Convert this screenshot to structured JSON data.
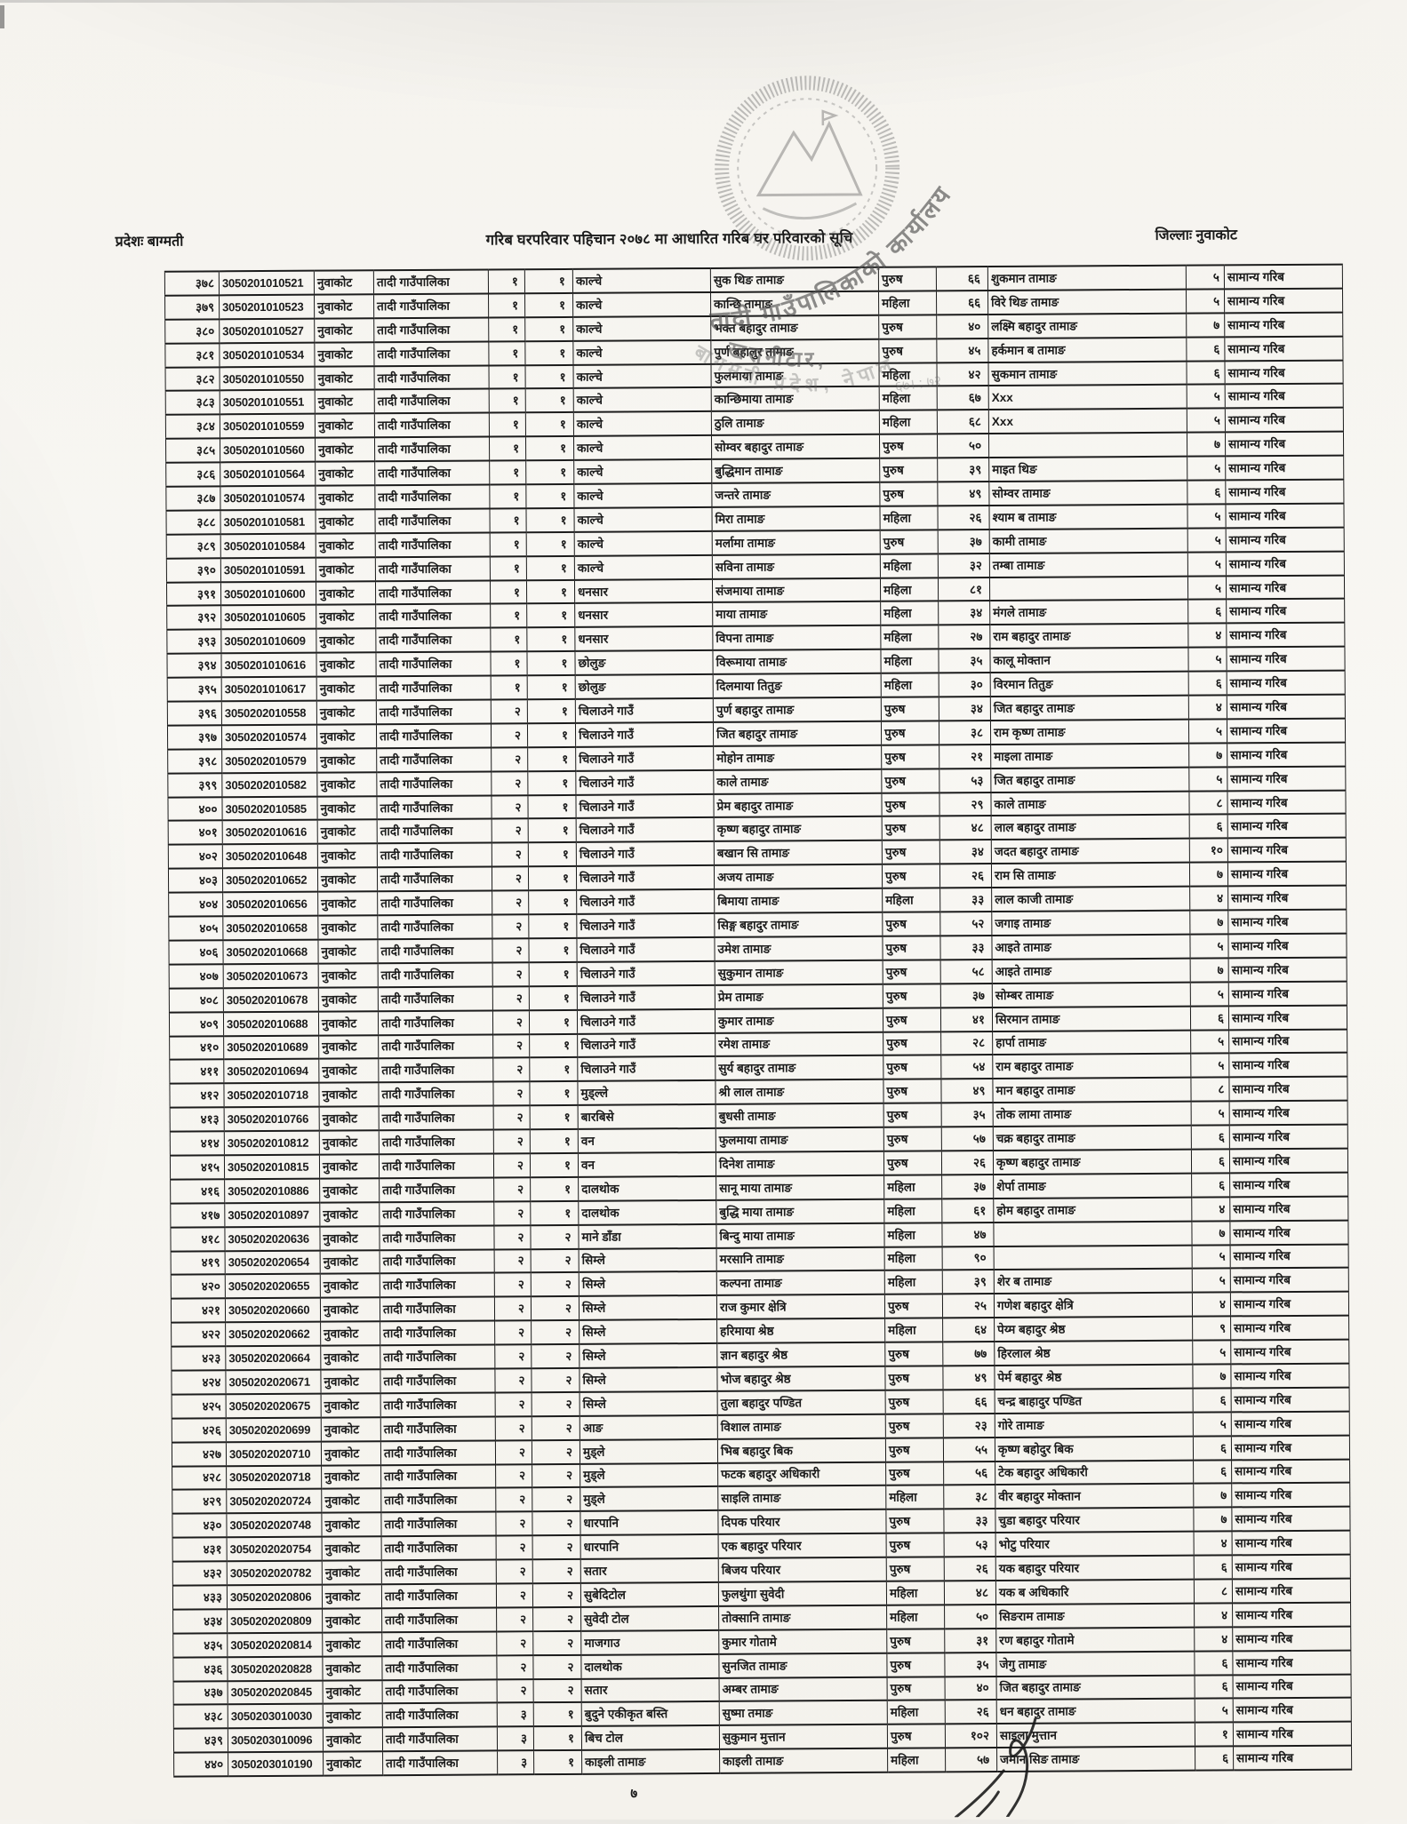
{
  "page": {
    "province_label": "प्रदेशः बाग्मती",
    "title": "गरिब घरपरिवार पहिचान २०७८ मा आधारित गरिब घर परिवारको सूचि",
    "district_label": "जिल्लाः नुवाकोट",
    "page_number": "७"
  },
  "stamp": {
    "arc_top_text": "तादी गाउँपालिकाको कार्यालय",
    "place_text": "खरानीटार,",
    "arc_bottom_text": "बागमती प्रदेश, नेपाल",
    "scribble_text": "६७। : ७२"
  },
  "table": {
    "columns": [
      "sn",
      "id",
      "district",
      "municipality",
      "ward",
      "subward",
      "village",
      "member_name",
      "gender",
      "age",
      "head_name",
      "family_size",
      "category"
    ],
    "rows": [
      [
        "३७८",
        "3050201010521",
        "नुवाकोट",
        "तादी गाउँपालिका",
        "१",
        "१",
        "काल्चे",
        "सुक थिङ तामाङ",
        "पुरुष",
        "६६",
        "शुकमान तामाङ",
        "५",
        "सामान्य गरिब"
      ],
      [
        "३७९",
        "3050201010523",
        "नुवाकोट",
        "तादी गाउँपालिका",
        "१",
        "१",
        "काल्चे",
        "कान्छि तामाङ",
        "महिला",
        "६६",
        "विरे थिङ तामाङ",
        "५",
        "सामान्य गरिब"
      ],
      [
        "३८०",
        "3050201010527",
        "नुवाकोट",
        "तादी गाउँपालिका",
        "१",
        "१",
        "काल्चे",
        "भक्त बहादुर तामाङ",
        "पुरुष",
        "४०",
        "लक्ष्मि बहादुर तामाङ",
        "७",
        "सामान्य गरिब"
      ],
      [
        "३८१",
        "3050201010534",
        "नुवाकोट",
        "तादी गाउँपालिका",
        "१",
        "१",
        "काल्चे",
        "पुर्ण बहालुर तामाङ",
        "पुरुष",
        "४५",
        "हर्कमान ब तामाङ",
        "६",
        "सामान्य गरिब"
      ],
      [
        "३८२",
        "3050201010550",
        "नुवाकोट",
        "तादी गाउँपालिका",
        "१",
        "१",
        "काल्चे",
        "फुलमाया तामाङ",
        "महिला",
        "४२",
        "सुकमान तामाङ",
        "६",
        "सामान्य गरिब"
      ],
      [
        "३८३",
        "3050201010551",
        "नुवाकोट",
        "तादी गाउँपालिका",
        "१",
        "१",
        "काल्चे",
        "कान्छिमाया तामाङ",
        "महिला",
        "६७",
        "Xxx",
        "५",
        "सामान्य गरिब"
      ],
      [
        "३८४",
        "3050201010559",
        "नुवाकोट",
        "तादी गाउँपालिका",
        "१",
        "१",
        "काल्चे",
        "ठुलि तामाङ",
        "महिला",
        "६८",
        "Xxx",
        "५",
        "सामान्य गरिब"
      ],
      [
        "३८५",
        "3050201010560",
        "नुवाकोट",
        "तादी गाउँपालिका",
        "१",
        "१",
        "काल्चे",
        "सोम्वर बहादुर तामाङ",
        "पुरुष",
        "५०",
        "",
        "७",
        "सामान्य गरिब"
      ],
      [
        "३८६",
        "3050201010564",
        "नुवाकोट",
        "तादी गाउँपालिका",
        "१",
        "१",
        "काल्चे",
        "बुद्धिमान तामाङ",
        "पुरुष",
        "३९",
        "माइत थिङ",
        "५",
        "सामान्य गरिब"
      ],
      [
        "३८७",
        "3050201010574",
        "नुवाकोट",
        "तादी गाउँपालिका",
        "१",
        "१",
        "काल्चे",
        "जन्तरे तामाङ",
        "पुरुष",
        "४९",
        "सोम्वर तामाङ",
        "६",
        "सामान्य गरिब"
      ],
      [
        "३८८",
        "3050201010581",
        "नुवाकोट",
        "तादी गाउँपालिका",
        "१",
        "१",
        "काल्चे",
        "मिरा तामाङ",
        "महिला",
        "२६",
        "श्याम ब तामाङ",
        "५",
        "सामान्य गरिब"
      ],
      [
        "३८९",
        "3050201010584",
        "नुवाकोट",
        "तादी गाउँपालिका",
        "१",
        "१",
        "काल्चे",
        "मर्लामा तामाङ",
        "पुरुष",
        "३७",
        "कामी तामाङ",
        "५",
        "सामान्य गरिब"
      ],
      [
        "३९०",
        "3050201010591",
        "नुवाकोट",
        "तादी गाउँपालिका",
        "१",
        "१",
        "काल्चे",
        "सविना तामाङ",
        "महिला",
        "३२",
        "तम्बा तामाङ",
        "५",
        "सामान्य गरिब"
      ],
      [
        "३९१",
        "3050201010600",
        "नुवाकोट",
        "तादी गाउँपालिका",
        "१",
        "१",
        "धनसार",
        "संजमाया तामाङ",
        "महिला",
        "८१",
        "",
        "५",
        "सामान्य गरिब"
      ],
      [
        "३९२",
        "3050201010605",
        "नुवाकोट",
        "तादी गाउँपालिका",
        "१",
        "१",
        "धनसार",
        "माया तामाङ",
        "महिला",
        "३४",
        "मंगले तामाङ",
        "६",
        "सामान्य गरिब"
      ],
      [
        "३९३",
        "3050201010609",
        "नुवाकोट",
        "तादी गाउँपालिका",
        "१",
        "१",
        "धनसार",
        "विपना तामाङ",
        "महिला",
        "२७",
        "राम बहादुर तामाङ",
        "४",
        "सामान्य गरिब"
      ],
      [
        "३९४",
        "3050201010616",
        "नुवाकोट",
        "तादी गाउँपालिका",
        "१",
        "१",
        "छोलुङ",
        "विरूमाया तामाङ",
        "महिला",
        "३५",
        "कालू मोक्तान",
        "५",
        "सामान्य गरिब"
      ],
      [
        "३९५",
        "3050201010617",
        "नुवाकोट",
        "तादी गाउँपालिका",
        "१",
        "१",
        "छोलुङ",
        "दिलमाया तितुङ",
        "महिला",
        "३०",
        "विरमान तितुङ",
        "६",
        "सामान्य गरिब"
      ],
      [
        "३९६",
        "3050202010558",
        "नुवाकोट",
        "तादी गाउँपालिका",
        "२",
        "१",
        "चिलाउने गाउँ",
        "पुर्ण बहादुर तामाङ",
        "पुरुष",
        "३४",
        "जित बहादुर तामाङ",
        "४",
        "सामान्य गरिब"
      ],
      [
        "३९७",
        "3050202010574",
        "नुवाकोट",
        "तादी गाउँपालिका",
        "२",
        "१",
        "चिलाउने गाउँ",
        "जित बहादुर तामाङ",
        "पुरुष",
        "३८",
        "राम कृष्ण तामाङ",
        "५",
        "सामान्य गरिब"
      ],
      [
        "३९८",
        "3050202010579",
        "नुवाकोट",
        "तादी गाउँपालिका",
        "२",
        "१",
        "चिलाउने गाउँ",
        "मोहोन तामाङ",
        "पुरुष",
        "२१",
        "माइला तामाङ",
        "७",
        "सामान्य गरिब"
      ],
      [
        "३९९",
        "3050202010582",
        "नुवाकोट",
        "तादी गाउँपालिका",
        "२",
        "१",
        "चिलाउने गाउँ",
        "काले तामाङ",
        "पुरुष",
        "५३",
        "जित बहादुर तामाङ",
        "५",
        "सामान्य गरिब"
      ],
      [
        "४००",
        "3050202010585",
        "नुवाकोट",
        "तादी गाउँपालिका",
        "२",
        "१",
        "चिलाउने गाउँ",
        "प्रेम बहादुर तामाङ",
        "पुरुष",
        "२९",
        "काले तामाङ",
        "८",
        "सामान्य गरिब"
      ],
      [
        "४०१",
        "3050202010616",
        "नुवाकोट",
        "तादी गाउँपालिका",
        "२",
        "१",
        "चिलाउने गाउँ",
        "कृष्ण बहादुर तामाङ",
        "पुरुष",
        "४८",
        "लाल बहादुर तामाङ",
        "६",
        "सामान्य गरिब"
      ],
      [
        "४०२",
        "3050202010648",
        "नुवाकोट",
        "तादी गाउँपालिका",
        "२",
        "१",
        "चिलाउने गाउँ",
        "बखान सि तामाङ",
        "पुरुष",
        "३४",
        "जदत बहादुर तामाङ",
        "१०",
        "सामान्य गरिब"
      ],
      [
        "४०३",
        "3050202010652",
        "नुवाकोट",
        "तादी गाउँपालिका",
        "२",
        "१",
        "चिलाउने गाउँ",
        "अजय तामाङ",
        "पुरुष",
        "२६",
        "राम सि तामाङ",
        "७",
        "सामान्य गरिब"
      ],
      [
        "४०४",
        "3050202010656",
        "नुवाकोट",
        "तादी गाउँपालिका",
        "२",
        "१",
        "चिलाउने गाउँ",
        "बिमाया तामाङ",
        "महिला",
        "३३",
        "लाल काजी तामाङ",
        "४",
        "सामान्य गरिब"
      ],
      [
        "४०५",
        "3050202010658",
        "नुवाकोट",
        "तादी गाउँपालिका",
        "२",
        "१",
        "चिलाउने गाउँ",
        "सिङ्ग बहादुर तामाङ",
        "पुरुष",
        "५२",
        "जगाइ तामाङ",
        "७",
        "सामान्य गरिब"
      ],
      [
        "४०६",
        "3050202010668",
        "नुवाकोट",
        "तादी गाउँपालिका",
        "२",
        "१",
        "चिलाउने गाउँ",
        "उमेश तामाङ",
        "पुरुष",
        "३३",
        "आइते तामाङ",
        "५",
        "सामान्य गरिब"
      ],
      [
        "४०७",
        "3050202010673",
        "नुवाकोट",
        "तादी गाउँपालिका",
        "२",
        "१",
        "चिलाउने गाउँ",
        "सुकुमान तामाङ",
        "पुरुष",
        "५८",
        "आइते तामाङ",
        "७",
        "सामान्य गरिब"
      ],
      [
        "४०८",
        "3050202010678",
        "नुवाकोट",
        "तादी गाउँपालिका",
        "२",
        "१",
        "चिलाउने गाउँ",
        "प्रेम तामाङ",
        "पुरुष",
        "३७",
        "सोम्बर तामाङ",
        "५",
        "सामान्य गरिब"
      ],
      [
        "४०९",
        "3050202010688",
        "नुवाकोट",
        "तादी गाउँपालिका",
        "२",
        "१",
        "चिलाउने गाउँ",
        "कुमार तामाङ",
        "पुरुष",
        "४१",
        "सिरमान तामाङ",
        "६",
        "सामान्य गरिब"
      ],
      [
        "४१०",
        "3050202010689",
        "नुवाकोट",
        "तादी गाउँपालिका",
        "२",
        "१",
        "चिलाउने गाउँ",
        "रमेश तामाङ",
        "पुरुष",
        "२८",
        "हार्पा तामाङ",
        "५",
        "सामान्य गरिब"
      ],
      [
        "४११",
        "3050202010694",
        "नुवाकोट",
        "तादी गाउँपालिका",
        "२",
        "१",
        "चिलाउने गाउँ",
        "सुर्य बहादुर तामाङ",
        "पुरुष",
        "५४",
        "राम बहादुर तामाङ",
        "५",
        "सामान्य गरिब"
      ],
      [
        "४१२",
        "3050202010718",
        "नुवाकोट",
        "तादी गाउँपालिका",
        "२",
        "१",
        "मुड्ल्ले",
        "श्री लाल तामाङ",
        "पुरुष",
        "४९",
        "मान बहादुर तामाङ",
        "८",
        "सामान्य गरिब"
      ],
      [
        "४१३",
        "3050202010766",
        "नुवाकोट",
        "तादी गाउँपालिका",
        "२",
        "१",
        "बारबिसे",
        "बुधसी तामाङ",
        "पुरुष",
        "३५",
        "तोक लामा तामाङ",
        "५",
        "सामान्य गरिब"
      ],
      [
        "४१४",
        "3050202010812",
        "नुवाकोट",
        "तादी गाउँपालिका",
        "२",
        "१",
        "वन",
        "फुलमाया तामाङ",
        "पुरुष",
        "५७",
        "चक्र बहादुर तामाङ",
        "६",
        "सामान्य गरिब"
      ],
      [
        "४१५",
        "3050202010815",
        "नुवाकोट",
        "तादी गाउँपालिका",
        "२",
        "१",
        "वन",
        "दिनेश तामाङ",
        "पुरुष",
        "२६",
        "कृष्ण बहादुर तामाङ",
        "६",
        "सामान्य गरिब"
      ],
      [
        "४१६",
        "3050202010886",
        "नुवाकोट",
        "तादी गाउँपालिका",
        "२",
        "१",
        "दालथोक",
        "सानू माया तामाङ",
        "महिला",
        "३७",
        "शेर्पा तामाङ",
        "६",
        "सामान्य गरिब"
      ],
      [
        "४१७",
        "3050202010897",
        "नुवाकोट",
        "तादी गाउँपालिका",
        "२",
        "१",
        "दालथोक",
        "बुद्धि माया तामाङ",
        "महिला",
        "६१",
        "होम बहादुर तामाङ",
        "४",
        "सामान्य गरिब"
      ],
      [
        "४१८",
        "3050202020636",
        "नुवाकोट",
        "तादी गाउँपालिका",
        "२",
        "२",
        "माने डाँडा",
        "बिन्दु माया तामाङ",
        "महिला",
        "४७",
        "",
        "७",
        "सामान्य गरिब"
      ],
      [
        "४१९",
        "3050202020654",
        "नुवाकोट",
        "तादी गाउँपालिका",
        "२",
        "२",
        "सिम्ले",
        "मरसानि तामाङ",
        "महिला",
        "९०",
        "",
        "५",
        "सामान्य गरिब"
      ],
      [
        "४२०",
        "3050202020655",
        "नुवाकोट",
        "तादी गाउँपालिका",
        "२",
        "२",
        "सिम्ले",
        "कल्पना तामाङ",
        "महिला",
        "३९",
        "शेर ब तामाङ",
        "५",
        "सामान्य गरिब"
      ],
      [
        "४२१",
        "3050202020660",
        "नुवाकोट",
        "तादी गाउँपालिका",
        "२",
        "२",
        "सिम्ले",
        "राज कुमार क्षेत्रि",
        "पुरुष",
        "२५",
        "गणेश बहादुर क्षेत्रि",
        "४",
        "सामान्य गरिब"
      ],
      [
        "४२२",
        "3050202020662",
        "नुवाकोट",
        "तादी गाउँपालिका",
        "२",
        "२",
        "सिम्ले",
        "हरिमाया श्रेष्ठ",
        "महिला",
        "६४",
        "पेय्म बहादुर श्रेष्ठ",
        "९",
        "सामान्य गरिब"
      ],
      [
        "४२३",
        "3050202020664",
        "नुवाकोट",
        "तादी गाउँपालिका",
        "२",
        "२",
        "सिम्ले",
        "ज्ञान बहादुर श्रेष्ठ",
        "पुरुष",
        "७७",
        "हिरलाल श्रेष्ठ",
        "५",
        "सामान्य गरिब"
      ],
      [
        "४२४",
        "3050202020671",
        "नुवाकोट",
        "तादी गाउँपालिका",
        "२",
        "२",
        "सिम्ले",
        "भोज बहादुर श्रेष्ठ",
        "पुरुष",
        "४९",
        "पेर्म बहादुर श्रेष्ठ",
        "७",
        "सामान्य गरिब"
      ],
      [
        "४२५",
        "3050202020675",
        "नुवाकोट",
        "तादी गाउँपालिका",
        "२",
        "२",
        "सिम्ले",
        "तुला बहादुर पण्डित",
        "पुरुष",
        "६६",
        "चन्द्र बाहादुर पण्डित",
        "६",
        "सामान्य गरिब"
      ],
      [
        "४२६",
        "3050202020699",
        "नुवाकोट",
        "तादी गाउँपालिका",
        "२",
        "२",
        "आङ",
        "विशाल तामाङ",
        "पुरुष",
        "२३",
        "गोरे तामाङ",
        "५",
        "सामान्य गरिब"
      ],
      [
        "४२७",
        "3050202020710",
        "नुवाकोट",
        "तादी गाउँपालिका",
        "२",
        "२",
        "मुड्ले",
        "भिब बहादुर बिक",
        "पुरुष",
        "५५",
        "कृष्ण बहोदुर बिक",
        "६",
        "सामान्य गरिब"
      ],
      [
        "४२८",
        "3050202020718",
        "नुवाकोट",
        "तादी गाउँपालिका",
        "२",
        "२",
        "मुड्ले",
        "फटक बहादुर अधिकारी",
        "पुरुष",
        "५६",
        "टेक बहादुर अधिकारी",
        "६",
        "सामान्य गरिब"
      ],
      [
        "४२९",
        "3050202020724",
        "नुवाकोट",
        "तादी गाउँपालिका",
        "२",
        "२",
        "मुड्ले",
        "साइलि तामाङ",
        "महिला",
        "३८",
        "वीर बहादुर मोक्तान",
        "७",
        "सामान्य गरिब"
      ],
      [
        "४३०",
        "3050202020748",
        "नुवाकोट",
        "तादी गाउँपालिका",
        "२",
        "२",
        "धारपानि",
        "दिपक परियार",
        "पुरुष",
        "३३",
        "चुडा बहादुर परियार",
        "७",
        "सामान्य गरिब"
      ],
      [
        "४३१",
        "3050202020754",
        "नुवाकोट",
        "तादी गाउँपालिका",
        "२",
        "२",
        "धारपानि",
        "एक बहादुर परियार",
        "पुरुष",
        "५३",
        "भोटु परियार",
        "४",
        "सामान्य गरिब"
      ],
      [
        "४३२",
        "3050202020782",
        "नुवाकोट",
        "तादी गाउँपालिका",
        "२",
        "२",
        "सतार",
        "बिजय परियार",
        "पुरुष",
        "२६",
        "यक बहादुर परियार",
        "६",
        "सामान्य गरिब"
      ],
      [
        "४३३",
        "3050202020806",
        "नुवाकोट",
        "तादी गाउँपालिका",
        "२",
        "२",
        "सुबेदिटोल",
        "फुलथुंगा सुवेदी",
        "महिला",
        "४८",
        "यक ब अधिकारि",
        "८",
        "सामान्य गरिब"
      ],
      [
        "४३४",
        "3050202020809",
        "नुवाकोट",
        "तादी गाउँपालिका",
        "२",
        "२",
        "सुवेदी टोल",
        "तोक्सानि तामाङ",
        "महिला",
        "५०",
        "सिङराम तामाङ",
        "४",
        "सामान्य गरिब"
      ],
      [
        "४३५",
        "3050202020814",
        "नुवाकोट",
        "तादी गाउँपालिका",
        "२",
        "२",
        "माजगाउ",
        "कुमार गोतामे",
        "पुरुष",
        "३१",
        "रण बहादुर गोतामे",
        "४",
        "सामान्य गरिब"
      ],
      [
        "४३६",
        "3050202020828",
        "नुवाकोट",
        "तादी गाउँपालिका",
        "२",
        "२",
        "दालथाेक",
        "सुनजित तामाङ",
        "पुरुष",
        "३५",
        "जेगु तामाङ",
        "६",
        "सामान्य गरिब"
      ],
      [
        "४३७",
        "3050202020845",
        "नुवाकोट",
        "तादी गाउँपालिका",
        "२",
        "२",
        "सतार",
        "अम्बर तामाङ",
        "पुरुष",
        "४०",
        "जित बहादुर तामाङ",
        "६",
        "सामान्य गरिब"
      ],
      [
        "४३८",
        "3050203010030",
        "नुवाकोट",
        "तादी गाउँपालिका",
        "३",
        "१",
        "बुदुने एकीकृत बस्ति",
        "सुष्मा तमाङ",
        "महिला",
        "२६",
        "धन बहादुर तामाङ",
        "५",
        "सामान्य गरिब"
      ],
      [
        "४३९",
        "3050203010096",
        "नुवाकोट",
        "तादी गाउँपालिका",
        "३",
        "१",
        "बिच टोल",
        "सुकुमान मुत्तान",
        "पुरुष",
        "१०२",
        "साइला मुत्तान",
        "१",
        "सामान्य गरिब"
      ],
      [
        "४४०",
        "3050203010190",
        "नुवाकोट",
        "तादी गाउँपालिका",
        "३",
        "१",
        "काइली तामाङ",
        "काइली तामाङ",
        "महिला",
        "५७",
        "जमान सिङ तामाङ",
        "६",
        "सामान्य गरिब"
      ]
    ]
  }
}
